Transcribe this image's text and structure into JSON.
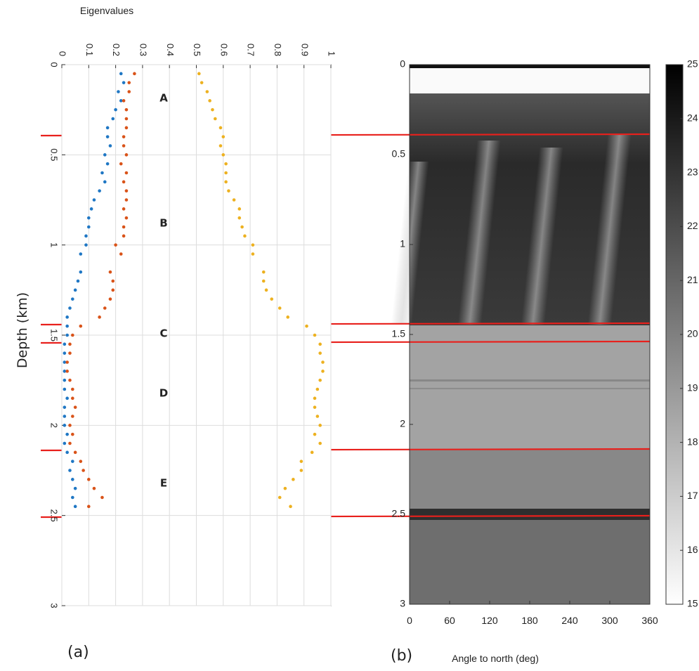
{
  "chart_data": [
    {
      "type": "scatter",
      "title": "Eigenvalues",
      "y_label": "Depth (km)",
      "panel_label": "(a)",
      "annotations": [
        "A",
        "B",
        "C",
        "D",
        "E"
      ],
      "xlim": [
        0,
        1
      ],
      "xticks": [
        0,
        0.1,
        0.2,
        0.3,
        0.4,
        0.5,
        0.6,
        0.7,
        0.8,
        0.9,
        1
      ],
      "ylim": [
        0,
        3
      ],
      "yticks": [
        0,
        0.5,
        1,
        1.5,
        2,
        2.5,
        3
      ],
      "grid": true,
      "depths": [
        0.05,
        0.1,
        0.15,
        0.2,
        0.25,
        0.3,
        0.35,
        0.4,
        0.45,
        0.5,
        0.55,
        0.6,
        0.65,
        0.7,
        0.75,
        0.8,
        0.85,
        0.9,
        0.95,
        1.0,
        1.05,
        1.15,
        1.2,
        1.25,
        1.3,
        1.35,
        1.4,
        1.45,
        1.5,
        1.55,
        1.6,
        1.65,
        1.7,
        1.75,
        1.8,
        1.85,
        1.9,
        1.95,
        2.0,
        2.05,
        2.1,
        2.15,
        2.2,
        2.25,
        2.3,
        2.35,
        2.4,
        2.45
      ],
      "series": [
        {
          "color": "#1f77c4",
          "values": [
            0.22,
            0.23,
            0.21,
            0.22,
            0.2,
            0.19,
            0.17,
            0.17,
            0.18,
            0.16,
            0.17,
            0.15,
            0.16,
            0.14,
            0.12,
            0.11,
            0.1,
            0.1,
            0.09,
            0.09,
            0.07,
            0.07,
            0.06,
            0.05,
            0.04,
            0.03,
            0.02,
            0.02,
            0.02,
            0.01,
            0.01,
            0.01,
            0.01,
            0.01,
            0.01,
            0.02,
            0.01,
            0.01,
            0.01,
            0.02,
            0.01,
            0.02,
            0.04,
            0.03,
            0.04,
            0.05,
            0.04,
            0.05
          ]
        },
        {
          "color": "#d95319",
          "values": [
            0.27,
            0.25,
            0.25,
            0.23,
            0.24,
            0.24,
            0.24,
            0.23,
            0.23,
            0.24,
            0.22,
            0.24,
            0.23,
            0.24,
            0.24,
            0.23,
            0.24,
            0.23,
            0.23,
            0.2,
            0.22,
            0.18,
            0.19,
            0.19,
            0.18,
            0.16,
            0.14,
            0.07,
            0.04,
            0.03,
            0.03,
            0.02,
            0.02,
            0.03,
            0.04,
            0.04,
            0.05,
            0.04,
            0.03,
            0.04,
            0.03,
            0.05,
            0.07,
            0.08,
            0.1,
            0.12,
            0.15,
            0.1
          ]
        },
        {
          "color": "#edb120",
          "values": [
            0.51,
            0.52,
            0.54,
            0.55,
            0.56,
            0.57,
            0.59,
            0.6,
            0.59,
            0.6,
            0.61,
            0.61,
            0.61,
            0.62,
            0.64,
            0.66,
            0.66,
            0.67,
            0.68,
            0.71,
            0.71,
            0.75,
            0.75,
            0.76,
            0.78,
            0.81,
            0.84,
            0.91,
            0.94,
            0.96,
            0.96,
            0.97,
            0.97,
            0.96,
            0.95,
            0.94,
            0.94,
            0.95,
            0.96,
            0.94,
            0.96,
            0.93,
            0.89,
            0.89,
            0.86,
            0.83,
            0.81,
            0.85
          ]
        }
      ]
    },
    {
      "type": "image",
      "x_label": "Angle to north (deg)",
      "panel_label": "(b)",
      "xlim": [
        0,
        360
      ],
      "xticks": [
        0,
        60,
        120,
        180,
        240,
        300,
        360
      ],
      "ylim": [
        0,
        3
      ],
      "yticks": [
        0,
        0.5,
        1,
        1.5,
        2,
        2.5,
        3
      ],
      "clim": [
        15,
        25
      ],
      "cticks": [
        15,
        16,
        17,
        18,
        19,
        20,
        21,
        22,
        23,
        24,
        25
      ]
    }
  ]
}
